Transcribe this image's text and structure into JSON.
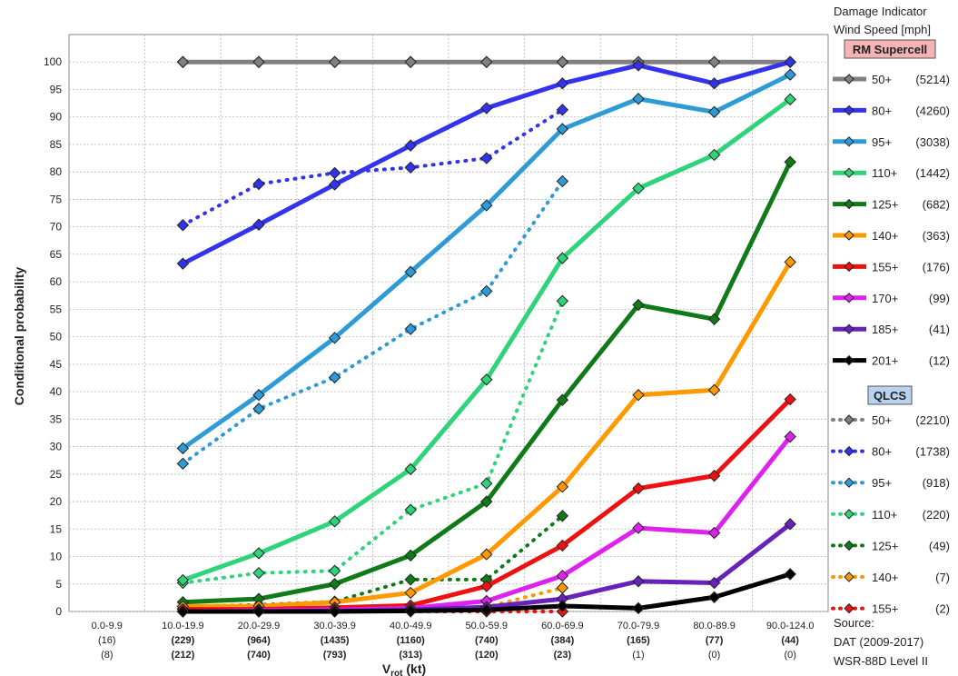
{
  "legend": {
    "header": [
      "Damage Indicator",
      "Wind Speed [mph]"
    ],
    "group1_title": "RM Supercell",
    "group1_bg": "#f4b4b4",
    "group2_title": "QLCS",
    "group2_bg": "#b8d3ee",
    "source": [
      "Source:",
      "DAT (2009-2017)",
      "WSR-88D Level II"
    ]
  },
  "chart_data": {
    "type": "line",
    "xlabel_main": "V",
    "xlabel_sub": "rot",
    "xlabel_unit": " (kt)",
    "ylabel": "Conditional  probability",
    "ylim": [
      0,
      105
    ],
    "yticks": [
      0,
      5,
      10,
      15,
      20,
      25,
      30,
      35,
      40,
      45,
      50,
      55,
      60,
      65,
      70,
      75,
      80,
      85,
      90,
      95,
      100
    ],
    "grid": true,
    "legend_position": "right",
    "categories": [
      "0.0-9.9",
      "10.0-19.9",
      "20.0-29.9",
      "30.0-39.9",
      "40.0-49.9",
      "50.0-59.9",
      "60.0-69.9",
      "70.0-79.9",
      "80.0-89.9",
      "90.0-124.0"
    ],
    "counts_supercell": [
      "(16)",
      "(229)",
      "(964)",
      "(1435)",
      "(1160)",
      "(740)",
      "(384)",
      "(165)",
      "(77)",
      "(44)"
    ],
    "counts_qlcs": [
      "(8)",
      "(212)",
      "(740)",
      "(793)",
      "(313)",
      "(120)",
      "(23)",
      "(1)",
      "(0)",
      "(0)"
    ],
    "series": [
      {
        "group": "RM Supercell",
        "name": "50+",
        "count": "(5214)",
        "color": "#808080",
        "dashed": false,
        "values": [
          null,
          100,
          100,
          100,
          100,
          100,
          100,
          100,
          100,
          100
        ]
      },
      {
        "group": "RM Supercell",
        "name": "80+",
        "count": "(4260)",
        "color": "#3333ee",
        "dashed": false,
        "values": [
          null,
          63.3,
          70.4,
          77.7,
          84.8,
          91.6,
          96.1,
          99.4,
          96.1,
          100
        ]
      },
      {
        "group": "RM Supercell",
        "name": "95+",
        "count": "(3038)",
        "color": "#2e9bd6",
        "dashed": false,
        "values": [
          null,
          29.7,
          39.4,
          49.8,
          61.8,
          73.9,
          87.8,
          93.3,
          90.9,
          97.7
        ]
      },
      {
        "group": "RM Supercell",
        "name": "110+",
        "count": "(1442)",
        "color": "#2ed37a",
        "dashed": false,
        "values": [
          null,
          5.7,
          10.6,
          16.4,
          25.9,
          42.2,
          64.3,
          77.0,
          83.1,
          93.2
        ]
      },
      {
        "group": "RM Supercell",
        "name": "125+",
        "count": "(682)",
        "color": "#0f7a17",
        "dashed": false,
        "values": [
          null,
          1.7,
          2.3,
          5.0,
          10.2,
          20.0,
          38.5,
          55.8,
          53.2,
          81.8
        ]
      },
      {
        "group": "RM Supercell",
        "name": "140+",
        "count": "(363)",
        "color": "#ff9900",
        "dashed": false,
        "values": [
          null,
          0.9,
          1.0,
          1.7,
          3.4,
          10.4,
          22.7,
          39.4,
          40.3,
          63.6
        ]
      },
      {
        "group": "RM Supercell",
        "name": "155+",
        "count": "(176)",
        "color": "#ee1111",
        "dashed": false,
        "values": [
          null,
          0.4,
          0.4,
          0.7,
          1.1,
          4.6,
          12.0,
          22.4,
          24.7,
          38.6
        ]
      },
      {
        "group": "RM Supercell",
        "name": "170+",
        "count": "(99)",
        "color": "#dd22ee",
        "dashed": false,
        "values": [
          null,
          0.0,
          0.2,
          0.3,
          0.6,
          1.9,
          6.5,
          15.2,
          14.3,
          31.8
        ]
      },
      {
        "group": "RM Supercell",
        "name": "185+",
        "count": "(41)",
        "color": "#6622bb",
        "dashed": false,
        "values": [
          null,
          0.0,
          0.0,
          0.1,
          0.3,
          0.8,
          2.3,
          5.5,
          5.2,
          15.9
        ]
      },
      {
        "group": "RM Supercell",
        "name": "201+",
        "count": "(12)",
        "color": "#000000",
        "dashed": false,
        "values": [
          null,
          0.0,
          0.0,
          0.0,
          0.1,
          0.3,
          1.0,
          0.6,
          2.6,
          6.8
        ]
      },
      {
        "group": "QLCS",
        "name": "50+",
        "count": "(2210)",
        "color": "#808080",
        "dashed": true,
        "values": [
          null,
          100,
          100,
          100,
          100,
          100,
          100,
          null,
          null,
          null
        ]
      },
      {
        "group": "QLCS",
        "name": "80+",
        "count": "(1738)",
        "color": "#3333ee",
        "dashed": true,
        "values": [
          null,
          70.3,
          77.8,
          79.8,
          80.8,
          82.5,
          91.3,
          null,
          null,
          null
        ]
      },
      {
        "group": "QLCS",
        "name": "95+",
        "count": "(918)",
        "color": "#2e9bd6",
        "dashed": true,
        "values": [
          null,
          26.9,
          36.9,
          42.6,
          51.4,
          58.3,
          78.3,
          null,
          null,
          null
        ]
      },
      {
        "group": "QLCS",
        "name": "110+",
        "count": "(220)",
        "color": "#2ed37a",
        "dashed": true,
        "values": [
          null,
          5.2,
          7.0,
          7.4,
          18.5,
          23.3,
          56.5,
          null,
          null,
          null
        ]
      },
      {
        "group": "QLCS",
        "name": "125+",
        "count": "(49)",
        "color": "#0f7a17",
        "dashed": true,
        "values": [
          null,
          0.9,
          1.2,
          1.8,
          5.8,
          5.8,
          17.4,
          null,
          null,
          null
        ]
      },
      {
        "group": "QLCS",
        "name": "140+",
        "count": "(7)",
        "color": "#ff9900",
        "dashed": true,
        "values": [
          null,
          0.5,
          0.3,
          0.1,
          0.3,
          0.8,
          4.3,
          null,
          null,
          null
        ]
      },
      {
        "group": "QLCS",
        "name": "155+",
        "count": "(2)",
        "color": "#ee1111",
        "dashed": true,
        "values": [
          null,
          0.0,
          0.0,
          0.0,
          0.0,
          0.0,
          0.0,
          null,
          null,
          null
        ]
      }
    ]
  }
}
